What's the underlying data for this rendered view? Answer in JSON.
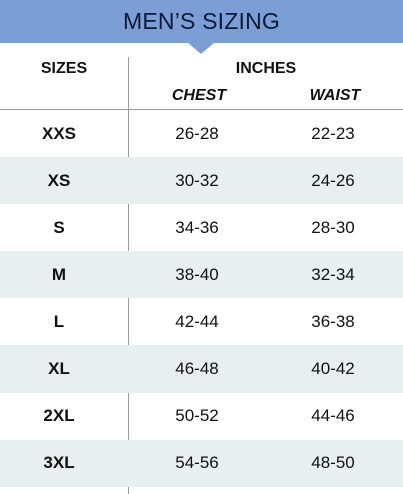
{
  "title": "MEN’S SIZING",
  "headers": {
    "sizes": "SIZES",
    "inches": "INCHES",
    "chest": "CHEST",
    "waist": "WAIST"
  },
  "rows": [
    {
      "size": "XXS",
      "chest": "26-28",
      "waist": "22-23"
    },
    {
      "size": "XS",
      "chest": "30-32",
      "waist": "24-26"
    },
    {
      "size": "S",
      "chest": "34-36",
      "waist": "28-30"
    },
    {
      "size": "M",
      "chest": "38-40",
      "waist": "32-34"
    },
    {
      "size": "L",
      "chest": "42-44",
      "waist": "36-38"
    },
    {
      "size": "XL",
      "chest": "46-48",
      "waist": "40-42"
    },
    {
      "size": "2XL",
      "chest": "50-52",
      "waist": "44-46"
    },
    {
      "size": "3XL",
      "chest": "54-56",
      "waist": "48-50"
    }
  ],
  "colors": {
    "banner": "#7b9ed4",
    "alt_row": "#e9eef1"
  }
}
